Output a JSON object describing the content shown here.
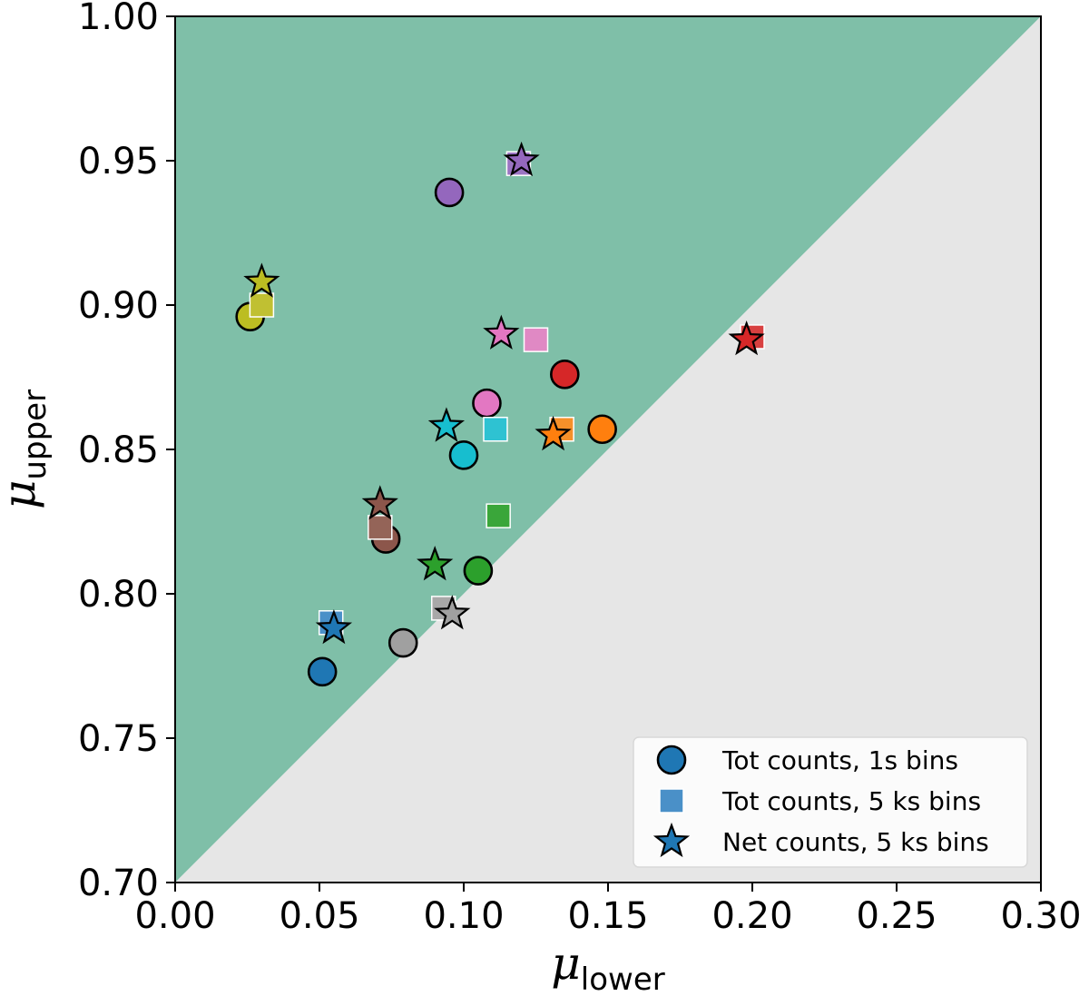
{
  "chart_data": {
    "type": "scatter",
    "xlabel": "μ",
    "xlabel_sub": "lower",
    "ylabel": "μ",
    "ylabel_sub": "upper",
    "xlim": [
      0.0,
      0.3
    ],
    "ylim": [
      0.7,
      1.0
    ],
    "xticks": [
      "0.00",
      "0.05",
      "0.10",
      "0.15",
      "0.20",
      "0.25",
      "0.30"
    ],
    "yticks": [
      "0.70",
      "0.75",
      "0.80",
      "0.85",
      "0.90",
      "0.95",
      "1.00"
    ],
    "grid": false,
    "legend_position": "bottom-right",
    "region_colors": {
      "upper": "#7fbfa8",
      "lower": "#e6e6e6"
    },
    "series": [
      {
        "name": "Tot counts, 1s bins",
        "marker": "circle",
        "legend_color": "#1f77b4",
        "points": [
          {
            "x": 0.051,
            "y": 0.773,
            "color": "#1f77b4"
          },
          {
            "x": 0.148,
            "y": 0.857,
            "color": "#ff7f0e"
          },
          {
            "x": 0.105,
            "y": 0.808,
            "color": "#2ca02c"
          },
          {
            "x": 0.135,
            "y": 0.876,
            "color": "#d62728"
          },
          {
            "x": 0.095,
            "y": 0.939,
            "color": "#9467bd"
          },
          {
            "x": 0.073,
            "y": 0.819,
            "color": "#8c564b"
          },
          {
            "x": 0.108,
            "y": 0.866,
            "color": "#e377c2"
          },
          {
            "x": 0.079,
            "y": 0.783,
            "color": "#a0a0a0"
          },
          {
            "x": 0.026,
            "y": 0.896,
            "color": "#bcbd22"
          },
          {
            "x": 0.1,
            "y": 0.848,
            "color": "#17becf"
          }
        ]
      },
      {
        "name": "Tot counts, 5 ks bins",
        "marker": "square",
        "legend_color": "#4a90c8",
        "points": [
          {
            "x": 0.054,
            "y": 0.79,
            "color": "#4a90c8"
          },
          {
            "x": 0.134,
            "y": 0.857,
            "color": "#f5902a"
          },
          {
            "x": 0.112,
            "y": 0.827,
            "color": "#3aa63a"
          },
          {
            "x": 0.2,
            "y": 0.889,
            "color": "#d84040"
          },
          {
            "x": 0.119,
            "y": 0.949,
            "color": "#9b74c2"
          },
          {
            "x": 0.071,
            "y": 0.823,
            "color": "#946458"
          },
          {
            "x": 0.125,
            "y": 0.888,
            "color": "#e089c4"
          },
          {
            "x": 0.093,
            "y": 0.795,
            "color": "#a8a8a8"
          },
          {
            "x": 0.03,
            "y": 0.9,
            "color": "#c0c032"
          },
          {
            "x": 0.111,
            "y": 0.857,
            "color": "#2ec2d2"
          }
        ]
      },
      {
        "name": "Net counts, 5 ks bins",
        "marker": "star",
        "legend_color": "#1f77b4",
        "points": [
          {
            "x": 0.055,
            "y": 0.788,
            "color": "#1f77b4"
          },
          {
            "x": 0.131,
            "y": 0.855,
            "color": "#ff7f0e"
          },
          {
            "x": 0.09,
            "y": 0.81,
            "color": "#2ca02c"
          },
          {
            "x": 0.198,
            "y": 0.888,
            "color": "#d62728"
          },
          {
            "x": 0.12,
            "y": 0.95,
            "color": "#9467bd"
          },
          {
            "x": 0.071,
            "y": 0.831,
            "color": "#8c564b"
          },
          {
            "x": 0.113,
            "y": 0.89,
            "color": "#e377c2"
          },
          {
            "x": 0.096,
            "y": 0.793,
            "color": "#a0a0a0"
          },
          {
            "x": 0.03,
            "y": 0.908,
            "color": "#bcbd22"
          },
          {
            "x": 0.094,
            "y": 0.858,
            "color": "#17becf"
          }
        ]
      }
    ]
  }
}
